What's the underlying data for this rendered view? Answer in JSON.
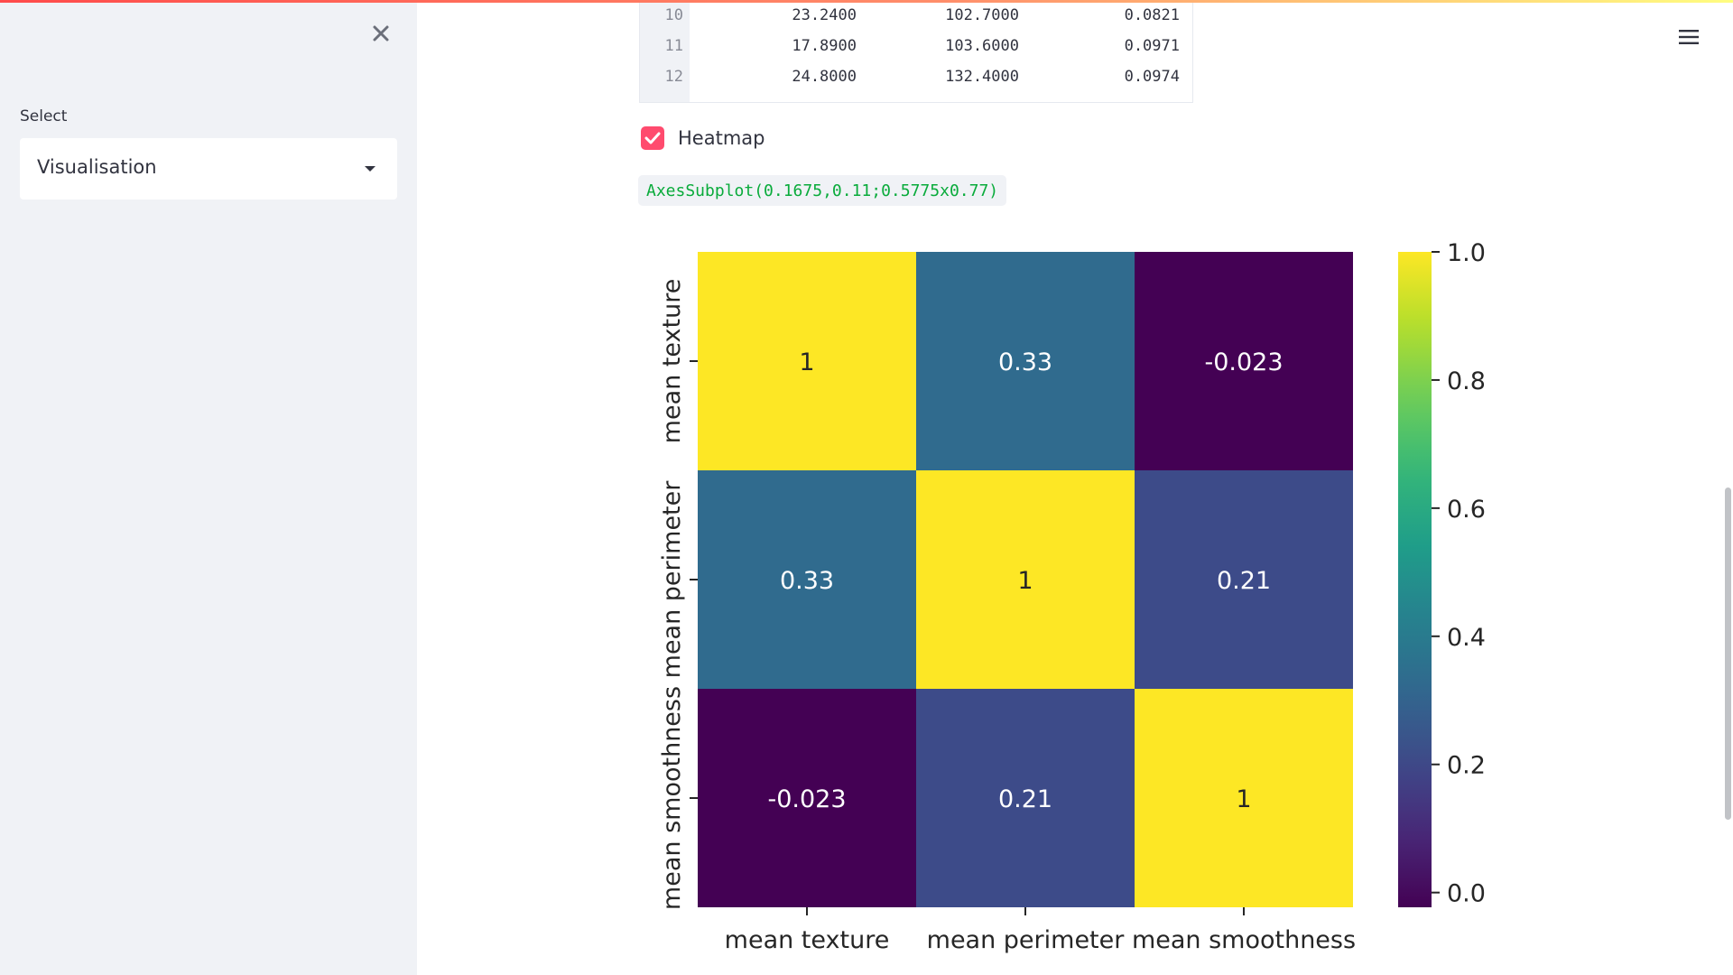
{
  "sidebar": {
    "close_icon": "close-icon",
    "select_label": "Select",
    "select_value": "Visualisation"
  },
  "header": {
    "menu_icon": "hamburger-menu-icon"
  },
  "dataframe": {
    "rows": [
      {
        "index": "10",
        "c1": "23.2400",
        "c2": "102.7000",
        "c3": "0.0821"
      },
      {
        "index": "11",
        "c1": "17.8900",
        "c2": "103.6000",
        "c3": "0.0971"
      },
      {
        "index": "12",
        "c1": "24.8000",
        "c2": "132.4000",
        "c3": "0.0974"
      }
    ]
  },
  "checkbox": {
    "label": "Heatmap",
    "checked": true
  },
  "code_output": "AxesSubplot(0.1675,0.11;0.5775x0.77)",
  "colors": {
    "accent": "#ff4b6e",
    "code_green": "#09ab3b",
    "sidebar_bg": "#f0f2f6"
  },
  "chart_data": {
    "type": "heatmap",
    "x_labels": [
      "mean texture",
      "mean perimeter",
      "mean smoothness"
    ],
    "y_labels": [
      "mean texture",
      "mean perimeter",
      "mean smoothness"
    ],
    "values": [
      [
        1,
        0.33,
        -0.023
      ],
      [
        0.33,
        1,
        0.21
      ],
      [
        -0.023,
        0.21,
        1
      ]
    ],
    "annotations": [
      [
        "1",
        "0.33",
        "-0.023"
      ],
      [
        "0.33",
        "1",
        "0.21"
      ],
      [
        "-0.023",
        "0.21",
        "1"
      ]
    ],
    "colormap": "viridis",
    "colorbar": {
      "range": [
        -0.023,
        1.0
      ],
      "ticks": [
        "0.0",
        "0.2",
        "0.4",
        "0.6",
        "0.8",
        "1.0"
      ],
      "tick_values": [
        0.0,
        0.2,
        0.4,
        0.6,
        0.8,
        1.0
      ]
    },
    "title": "",
    "xlabel": "",
    "ylabel": ""
  }
}
